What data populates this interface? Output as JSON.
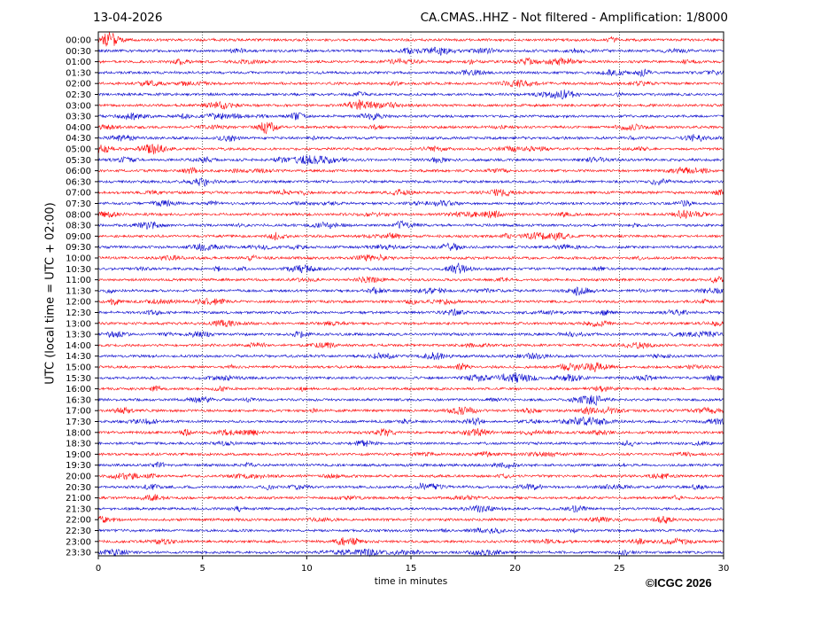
{
  "header": {
    "date": "13-04-2026",
    "title": "CA.CMAS..HHZ - Not filtered - Amplification: 1/8000"
  },
  "footer": {
    "copyright": "©ICGC 2026"
  },
  "colors": {
    "trace_a": "#ff0000",
    "trace_b": "#0000cc",
    "axes": "#000000",
    "grid": "#000000"
  },
  "chart_data": {
    "type": "line",
    "title": "CA.CMAS..HHZ - Not filtered - Amplification: 1/8000",
    "xlabel": "time in minutes",
    "ylabel": "UTC (local time = UTC + 02:00)",
    "xlim": [
      0,
      30
    ],
    "x_ticks": [
      0,
      5,
      10,
      15,
      20,
      25,
      30
    ],
    "x_grid": [
      5,
      10,
      15,
      20,
      25
    ],
    "grid": "vertical dotted",
    "row_labels": [
      "00:00",
      "00:30",
      "01:00",
      "01:30",
      "02:00",
      "02:30",
      "03:00",
      "03:30",
      "04:00",
      "04:30",
      "05:00",
      "05:30",
      "06:00",
      "06:30",
      "07:00",
      "07:30",
      "08:00",
      "08:30",
      "09:00",
      "09:30",
      "10:00",
      "10:30",
      "11:00",
      "11:30",
      "12:00",
      "12:30",
      "13:00",
      "13:30",
      "14:00",
      "14:30",
      "15:00",
      "15:30",
      "16:00",
      "16:30",
      "17:00",
      "17:30",
      "18:00",
      "18:30",
      "19:00",
      "19:30",
      "20:00",
      "20:30",
      "21:00",
      "21:30",
      "22:00",
      "22:30",
      "23:00",
      "23:30"
    ],
    "row_colors": "alternating red / blue",
    "series_note": "continuous seismic noise traces, one per 30-minute row"
  }
}
